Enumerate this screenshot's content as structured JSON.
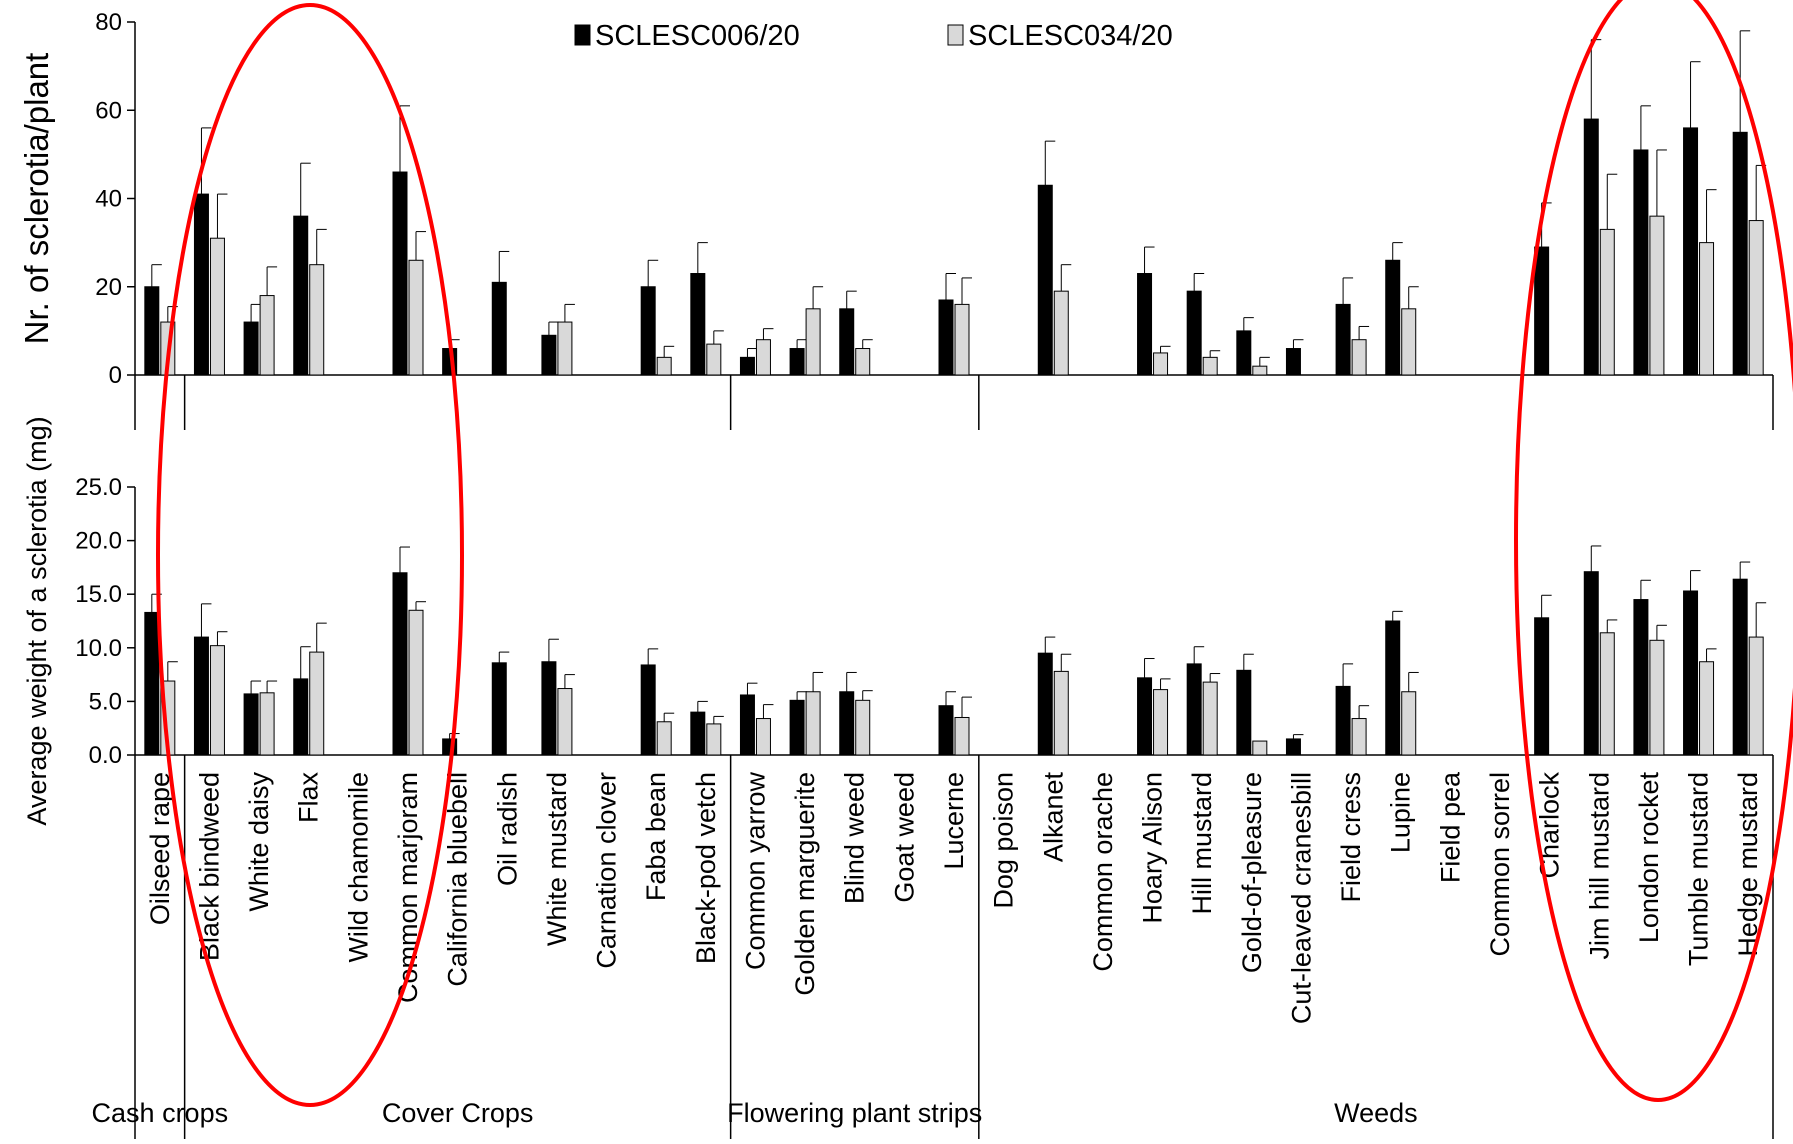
{
  "chart_data": {
    "type": "bar",
    "categories": [
      "Oilseed rape",
      "Black bindweed",
      "White daisy",
      "Flax",
      "Wild chamomile",
      "Common marjoram",
      "California bluebell",
      "Oil radish",
      "White mustard",
      "Carnation clover",
      "Faba bean",
      "Black-pod vetch",
      "Common yarrow",
      "Golden marguerite",
      "Blind weed",
      "Goat weed",
      "Lucerne",
      "Dog poison",
      "Alkanet",
      "Common orache",
      "Hoary Alison",
      "Hill mustard",
      "Gold-of-pleasure",
      "Cut-leaved cranesbill",
      "Field cress",
      "Lupine",
      "Field pea",
      "Common sorrel",
      "Charlock",
      "Jim hill mustard",
      "London rocket",
      "Tumble mustard",
      "Hedge mustard"
    ],
    "groups": [
      {
        "label": "Cash crops",
        "count": 1
      },
      {
        "label": "Cover Crops",
        "count": 11
      },
      {
        "label": "Flowering plant strips",
        "count": 5
      },
      {
        "label": "Weeds",
        "count": 16
      }
    ],
    "legend": [
      "SCLESC006/20",
      "SCLESC034/20"
    ],
    "series_colors": [
      "#000000",
      "#d9d9d9"
    ],
    "highlight_color": "#ff0000",
    "panels": [
      {
        "ylabel": "Nr. of sclerotia/plant",
        "ylim": [
          0,
          80
        ],
        "yticks": [
          "0",
          "20",
          "40",
          "60",
          "80"
        ],
        "tick_values": [
          0,
          20,
          40,
          60,
          80
        ],
        "series": [
          {
            "name": "SCLESC006/20",
            "values": [
              20,
              41,
              12,
              36,
              0,
              46,
              6,
              21,
              9,
              0,
              20,
              23,
              4,
              6,
              15,
              0,
              17,
              0,
              43,
              0,
              23,
              19,
              10,
              6,
              16,
              26,
              0,
              0,
              29,
              58,
              51,
              56,
              55
            ],
            "errors": [
              5,
              15,
              4,
              12,
              0,
              15,
              2,
              7,
              3,
              0,
              6,
              7,
              2,
              2,
              4,
              0,
              6,
              0,
              10,
              0,
              6,
              4,
              3,
              2,
              6,
              4,
              0,
              0,
              10,
              18,
              10,
              15,
              23
            ]
          },
          {
            "name": "SCLESC034/20",
            "values": [
              12,
              31,
              18,
              25,
              0,
              26,
              0,
              0,
              12,
              0,
              4,
              7,
              8,
              15,
              6,
              0,
              16,
              0,
              19,
              0,
              5,
              4,
              2,
              0,
              8,
              15,
              0,
              0,
              0,
              33,
              36,
              30,
              35
            ],
            "errors": [
              3.5,
              10,
              6.5,
              8,
              0,
              6.5,
              0,
              0,
              4,
              0,
              2.5,
              3,
              2.5,
              5,
              2,
              0,
              6,
              0,
              6,
              0,
              1.5,
              1.5,
              2,
              0,
              3,
              5,
              0,
              0,
              0,
              12.5,
              15,
              12,
              12.5
            ]
          }
        ]
      },
      {
        "ylabel": "Average weight of a sclerotia (mg)",
        "ylim": [
          0,
          25
        ],
        "yticks": [
          "0.0",
          "5.0",
          "10.0",
          "15.0",
          "20.0",
          "25.0"
        ],
        "tick_values": [
          0,
          5,
          10,
          15,
          20,
          25
        ],
        "series": [
          {
            "name": "SCLESC006/20",
            "values": [
              13.3,
              11,
              5.7,
              7.1,
              0,
              17,
              1.5,
              8.6,
              8.7,
              0,
              8.4,
              4,
              5.6,
              5.1,
              5.9,
              0,
              4.6,
              0,
              9.5,
              0,
              7.2,
              8.5,
              7.9,
              1.5,
              6.4,
              12.5,
              0,
              0,
              12.8,
              17.1,
              14.5,
              15.3,
              16.4
            ],
            "errors": [
              1.7,
              3.1,
              1.2,
              3,
              0,
              2.4,
              0.5,
              1,
              2.1,
              0,
              1.5,
              1,
              1.1,
              0.8,
              1.8,
              0,
              1.3,
              0,
              1.5,
              0,
              1.8,
              1.6,
              1.5,
              0.4,
              2.1,
              0.9,
              0,
              0,
              2.1,
              2.4,
              1.8,
              1.9,
              1.6
            ]
          },
          {
            "name": "SCLESC034/20",
            "values": [
              6.9,
              10.2,
              5.8,
              9.6,
              0,
              13.5,
              0,
              0,
              6.2,
              0,
              3.1,
              2.9,
              3.4,
              5.9,
              5.1,
              0,
              3.5,
              0,
              7.8,
              0,
              6.1,
              6.8,
              1.3,
              0,
              3.4,
              5.9,
              0,
              0,
              0,
              11.4,
              10.7,
              8.7,
              11
            ],
            "errors": [
              1.8,
              1.3,
              1.1,
              2.7,
              0,
              0.8,
              0,
              0,
              1.3,
              0,
              0.8,
              0.7,
              1.3,
              1.8,
              0.9,
              0,
              1.9,
              0,
              1.6,
              0,
              1,
              0.8,
              0,
              0,
              1.2,
              1.8,
              0,
              0,
              0,
              1.2,
              1.4,
              1.2,
              3.2
            ]
          }
        ]
      }
    ]
  }
}
